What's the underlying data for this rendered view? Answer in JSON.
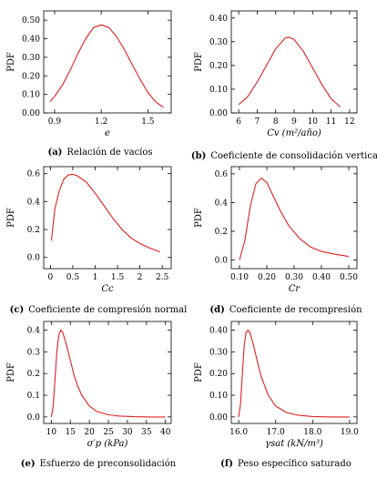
{
  "chart_data": [
    {
      "type": "line",
      "ylabel": "PDF",
      "xlabel": "e",
      "caption_letter": "(a)",
      "caption": "Relación de vacíos",
      "xlim": [
        0.83,
        1.65
      ],
      "ylim": [
        0.0,
        0.55
      ],
      "xticks": [
        "0.9",
        "1.2",
        "1.5"
      ],
      "yticks": [
        "0.00",
        "0.10",
        "0.20",
        "0.30",
        "0.40",
        "0.50"
      ],
      "series": [
        {
          "color": "#e02020",
          "x": [
            0.87,
            0.9,
            0.95,
            1.0,
            1.05,
            1.1,
            1.15,
            1.2,
            1.25,
            1.3,
            1.35,
            1.4,
            1.45,
            1.5,
            1.55,
            1.6
          ],
          "y": [
            0.06,
            0.09,
            0.15,
            0.23,
            0.32,
            0.4,
            0.46,
            0.475,
            0.46,
            0.41,
            0.34,
            0.26,
            0.18,
            0.11,
            0.06,
            0.03
          ]
        }
      ]
    },
    {
      "type": "line",
      "ylabel": "PDF",
      "xlabel": "Cv (m²/año)",
      "caption_letter": "(b)",
      "caption": "Coeficiente de consolidación vertical",
      "xlim": [
        5.6,
        12.4
      ],
      "ylim": [
        0.0,
        0.43
      ],
      "xticks": [
        "6",
        "7",
        "8",
        "9",
        "10",
        "11",
        "12"
      ],
      "yticks": [
        "0.00",
        "0.10",
        "0.20",
        "0.30",
        "0.40"
      ],
      "series": [
        {
          "color": "#e02020",
          "x": [
            6.0,
            6.5,
            7.0,
            7.5,
            8.0,
            8.5,
            8.7,
            9.0,
            9.5,
            10.0,
            10.5,
            11.0,
            11.5
          ],
          "y": [
            0.035,
            0.07,
            0.13,
            0.2,
            0.27,
            0.315,
            0.32,
            0.31,
            0.26,
            0.19,
            0.12,
            0.06,
            0.025
          ]
        }
      ]
    },
    {
      "type": "line",
      "ylabel": "PDF",
      "xlabel": "Cc",
      "caption_letter": "(c)",
      "caption": "Coeficiente de compresión normal",
      "xlim": [
        -0.15,
        2.7
      ],
      "ylim": [
        -0.08,
        0.65
      ],
      "xticks": [
        "0",
        "0.5",
        "1",
        "1.5",
        "2",
        "2.5"
      ],
      "yticks": [
        "0.0",
        "0.2",
        "0.4",
        "0.6"
      ],
      "series": [
        {
          "color": "#e02020",
          "x": [
            0.02,
            0.1,
            0.2,
            0.3,
            0.4,
            0.5,
            0.6,
            0.8,
            1.0,
            1.2,
            1.4,
            1.6,
            1.8,
            2.0,
            2.2,
            2.45
          ],
          "y": [
            0.12,
            0.35,
            0.48,
            0.56,
            0.59,
            0.595,
            0.585,
            0.54,
            0.46,
            0.37,
            0.28,
            0.2,
            0.14,
            0.1,
            0.07,
            0.04
          ]
        }
      ]
    },
    {
      "type": "line",
      "ylabel": "PDF",
      "xlabel": "Cr",
      "caption_letter": "(d)",
      "caption": "Coeficiente de recompresión",
      "xlim": [
        0.07,
        0.53
      ],
      "ylim": [
        -0.06,
        0.65
      ],
      "xticks": [
        "0.10",
        "0.20",
        "0.30",
        "0.40",
        "0.50"
      ],
      "yticks": [
        "0.0",
        "0.2",
        "0.4",
        "0.6"
      ],
      "series": [
        {
          "color": "#e02020",
          "x": [
            0.1,
            0.12,
            0.14,
            0.16,
            0.18,
            0.2,
            0.22,
            0.25,
            0.28,
            0.32,
            0.36,
            0.4,
            0.45,
            0.5
          ],
          "y": [
            0.0,
            0.14,
            0.38,
            0.53,
            0.57,
            0.54,
            0.46,
            0.34,
            0.24,
            0.15,
            0.09,
            0.06,
            0.04,
            0.025
          ]
        }
      ]
    },
    {
      "type": "line",
      "ylabel": "PDF",
      "xlabel": "σ′p (kPa)",
      "caption_letter": "(e)",
      "caption": "Esfuerzo de preconsolidación",
      "xlim": [
        8.0,
        41.5
      ],
      "ylim": [
        -0.03,
        0.44
      ],
      "xticks": [
        "10",
        "15",
        "20",
        "25",
        "30",
        "35",
        "40"
      ],
      "yticks": [
        "0.0",
        "0.1",
        "0.2",
        "0.3",
        "0.4"
      ],
      "series": [
        {
          "color": "#e02020",
          "x": [
            10.0,
            10.5,
            11.0,
            11.5,
            12.0,
            12.5,
            13.0,
            14.0,
            15.0,
            16.0,
            17.0,
            18.0,
            20.0,
            22.0,
            25.0,
            28.0,
            32.0,
            36.0,
            40.0
          ],
          "y": [
            0.0,
            0.05,
            0.18,
            0.31,
            0.38,
            0.4,
            0.39,
            0.33,
            0.26,
            0.19,
            0.14,
            0.1,
            0.05,
            0.025,
            0.01,
            0.004,
            0.001,
            0.0,
            0.0
          ]
        }
      ]
    },
    {
      "type": "line",
      "ylabel": "PDF",
      "xlabel": "γsat (kN/m³)",
      "caption_letter": "(f)",
      "caption": "Peso específico saturado",
      "xlim": [
        15.8,
        19.2
      ],
      "ylim": [
        -0.03,
        0.44
      ],
      "xticks": [
        "16.0",
        "17.0",
        "18.0",
        "19.0"
      ],
      "yticks": [
        "0.00",
        "0.10",
        "0.20",
        "0.30",
        "0.40"
      ],
      "series": [
        {
          "color": "#e02020",
          "x": [
            16.0,
            16.05,
            16.1,
            16.15,
            16.2,
            16.25,
            16.3,
            16.4,
            16.5,
            16.6,
            16.8,
            17.0,
            17.3,
            17.6,
            18.0,
            18.5,
            19.0
          ],
          "y": [
            0.0,
            0.06,
            0.2,
            0.33,
            0.39,
            0.4,
            0.39,
            0.33,
            0.26,
            0.19,
            0.1,
            0.05,
            0.02,
            0.008,
            0.002,
            0.0,
            0.0
          ]
        }
      ]
    }
  ]
}
